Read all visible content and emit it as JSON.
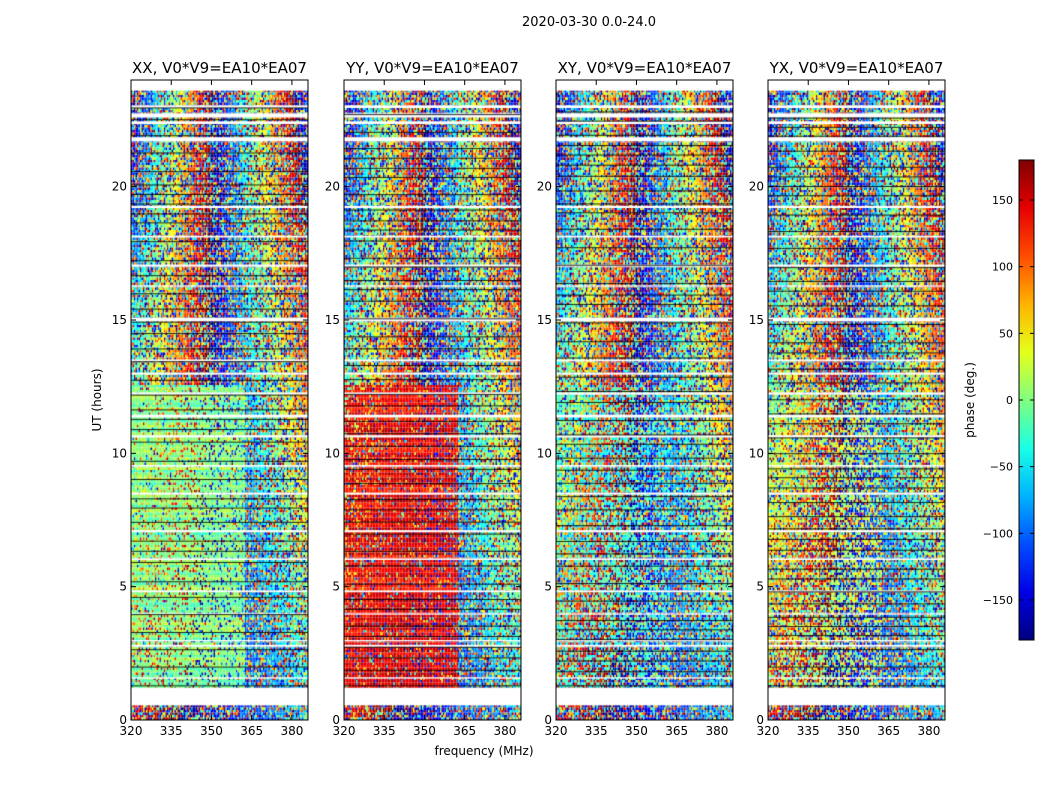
{
  "figure_title": "2020-03-30 0.0-24.0",
  "xlabel": "frequency (MHz)",
  "ylabel": "UT (hours)",
  "colorbar": {
    "label": "phase (deg.)",
    "range": [
      -180,
      180
    ],
    "ticks": [
      150,
      100,
      50,
      0,
      -50,
      -100,
      -150
    ],
    "tick_labels": [
      "150",
      "100",
      "50",
      "0",
      "−50",
      "−100",
      "−150"
    ],
    "colormap": "jet"
  },
  "chart_data": [
    {
      "type": "heatmap",
      "title": "XX, V0*V9=EA10*EA07",
      "xlim": [
        320,
        386
      ],
      "ylim": [
        0,
        24
      ],
      "xticks": [
        320,
        335,
        350,
        365,
        380
      ],
      "yticks": [
        0,
        5,
        10,
        15,
        20
      ],
      "dominant_phase_deg": 0,
      "noise_level": 0.25,
      "note": "coherent phase near 0 deg from ~1.2 to ~12.6 UT, 320-362 MHz; noisy elsewhere"
    },
    {
      "type": "heatmap",
      "title": "YY, V0*V9=EA10*EA07",
      "xlim": [
        320,
        386
      ],
      "ylim": [
        0,
        24
      ],
      "xticks": [
        320,
        335,
        350,
        365,
        380
      ],
      "yticks": [
        0,
        5,
        10,
        15,
        20
      ],
      "dominant_phase_deg": 140,
      "noise_level": 0.25,
      "note": "coherent phase near 140 deg from ~1.2 to ~12.6 UT, 320-362 MHz; noisy elsewhere"
    },
    {
      "type": "heatmap",
      "title": "XY, V0*V9=EA10*EA07",
      "xlim": [
        320,
        386
      ],
      "ylim": [
        0,
        24
      ],
      "xticks": [
        320,
        335,
        350,
        365,
        380
      ],
      "yticks": [
        0,
        5,
        10,
        15,
        20
      ],
      "dominant_phase_deg": -30,
      "noise_level": 0.65,
      "note": "weakly coherent phase around -30 deg; mostly noise"
    },
    {
      "type": "heatmap",
      "title": "YX, V0*V9=EA10*EA07",
      "xlim": [
        320,
        386
      ],
      "ylim": [
        0,
        24
      ],
      "xticks": [
        320,
        335,
        350,
        365,
        380
      ],
      "yticks": [
        0,
        5,
        10,
        15,
        20
      ],
      "dominant_phase_deg": 20,
      "noise_level": 0.7,
      "note": "weakly coherent phase around 20 deg; mostly noise"
    }
  ],
  "flagged_gaps_ut": [
    [
      0.55,
      1.2
    ],
    [
      21.7,
      21.85
    ],
    [
      22.35,
      22.45
    ],
    [
      22.6,
      22.75
    ],
    [
      22.95,
      23.05
    ],
    [
      19.2,
      19.28
    ],
    [
      18.1,
      18.16
    ],
    [
      17.0,
      17.08
    ],
    [
      16.25,
      16.3
    ],
    [
      14.95,
      15.08
    ],
    [
      13.45,
      13.52
    ],
    [
      12.95,
      13.02
    ],
    [
      12.2,
      12.28
    ],
    [
      11.35,
      11.45
    ],
    [
      10.6,
      10.68
    ],
    [
      9.5,
      9.56
    ],
    [
      8.45,
      8.52
    ],
    [
      7.05,
      7.12
    ],
    [
      6.0,
      6.06
    ],
    [
      4.8,
      4.86
    ],
    [
      3.95,
      4.0
    ],
    [
      2.95,
      3.0
    ],
    [
      2.75,
      2.82
    ],
    [
      1.55,
      1.6
    ]
  ]
}
